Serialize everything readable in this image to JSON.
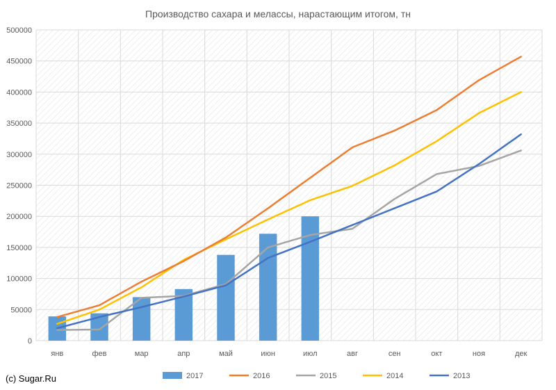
{
  "copyright": "(c) Sugar.Ru",
  "colors": {
    "s2017": "#5b9bd5",
    "s2016": "#ed7d31",
    "s2015": "#a5a5a5",
    "s2014": "#ffc000",
    "s2013": "#4472c4",
    "grid": "#d9d9d9",
    "text": "#595959"
  },
  "chart_data": {
    "type": "bar",
    "title": "Производство сахара и мелассы, нарастающим итогом, тн",
    "categories": [
      "янв",
      "фев",
      "мар",
      "апр",
      "май",
      "июн",
      "июл",
      "авг",
      "сен",
      "окт",
      "ноя",
      "дек"
    ],
    "ylim": [
      0,
      500000
    ],
    "yticks": [
      "0",
      "50000",
      "100000",
      "150000",
      "200000",
      "250000",
      "300000",
      "350000",
      "400000",
      "450000",
      "500000"
    ],
    "grid": true,
    "legend_position": "bottom",
    "series": [
      {
        "name": "2017",
        "type": "bar",
        "values": [
          39000,
          44000,
          70000,
          83000,
          138000,
          172000,
          200000,
          null,
          null,
          null,
          null,
          null
        ]
      },
      {
        "name": "2016",
        "type": "line",
        "values": [
          38000,
          57000,
          95000,
          128000,
          166000,
          213000,
          262000,
          311000,
          338000,
          371000,
          419000,
          457000
        ]
      },
      {
        "name": "2015",
        "type": "line",
        "values": [
          17000,
          18000,
          69000,
          72000,
          91000,
          150000,
          170000,
          180000,
          228000,
          268000,
          281000,
          306000
        ]
      },
      {
        "name": "2014",
        "type": "line",
        "values": [
          27000,
          50000,
          86000,
          130000,
          163000,
          195000,
          226000,
          249000,
          282000,
          321000,
          366000,
          400000
        ]
      },
      {
        "name": "2013",
        "type": "line",
        "values": [
          20000,
          38000,
          54000,
          71000,
          89000,
          133000,
          159000,
          186000,
          213000,
          240000,
          284000,
          332000
        ]
      }
    ]
  }
}
